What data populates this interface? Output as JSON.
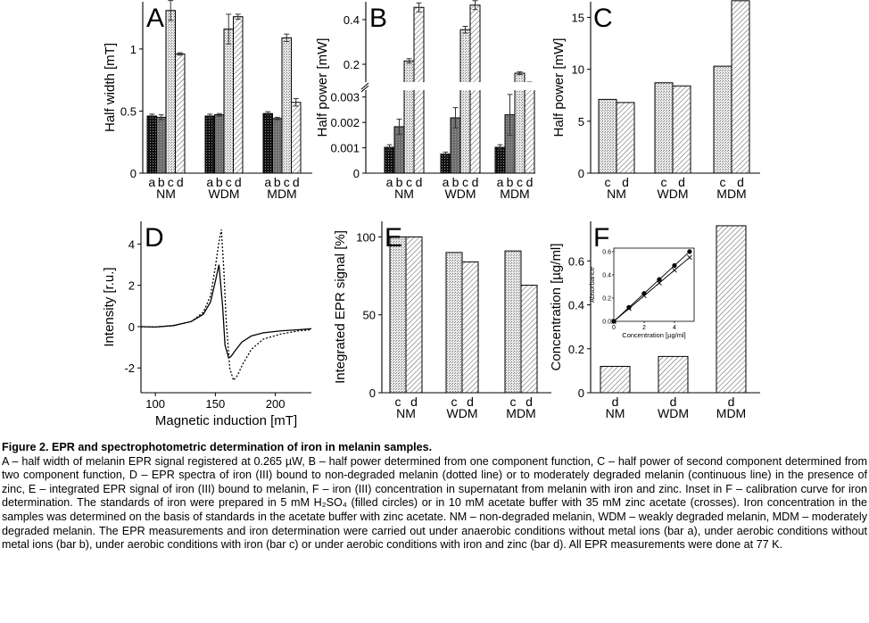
{
  "chart_data": [
    {
      "panel": "A",
      "type": "bar",
      "ylabel": "Half width [mT]",
      "ylim": [
        0,
        1.38
      ],
      "yticks": [
        "0",
        "0.5",
        "1"
      ],
      "ytick_values": [
        0,
        0.5,
        1
      ],
      "groups": [
        "NM",
        "WDM",
        "MDM"
      ],
      "bar_labels": [
        "a",
        "b",
        "c",
        "d"
      ],
      "series": [
        {
          "name": "a",
          "values": [
            0.46,
            0.46,
            0.48
          ],
          "errors": [
            0.015,
            0.015,
            0.015
          ]
        },
        {
          "name": "b",
          "values": [
            0.45,
            0.47,
            0.44
          ],
          "errors": [
            0.02,
            0.01,
            0.01
          ]
        },
        {
          "name": "c",
          "values": [
            1.31,
            1.16,
            1.09
          ],
          "errors": [
            0.08,
            0.12,
            0.03
          ]
        },
        {
          "name": "d",
          "values": [
            0.96,
            1.26,
            0.57
          ],
          "errors": [
            0.01,
            0.02,
            0.03
          ]
        }
      ]
    },
    {
      "panel": "B",
      "type": "bar",
      "ylabel": "Half power [mW]",
      "yticks_lower": [
        "0",
        "0.001",
        "0.002",
        "0.003"
      ],
      "ytick_values_lower": [
        0,
        0.001,
        0.002,
        0.003
      ],
      "yticks_upper": [
        "0.2",
        "0.4"
      ],
      "ytick_values_upper": [
        0.2,
        0.4
      ],
      "axis_break": [
        0.0031,
        0.12
      ],
      "groups": [
        "NM",
        "WDM",
        "MDM"
      ],
      "bar_labels": [
        "a",
        "b",
        "c",
        "d"
      ],
      "series": [
        {
          "name": "a",
          "values": [
            0.00102,
            0.00075,
            0.00102
          ],
          "errors": [
            0.0001,
            8e-05,
            0.0001
          ]
        },
        {
          "name": "b",
          "values": [
            0.00183,
            0.00218,
            0.0023
          ],
          "errors": [
            0.0003,
            0.0004,
            0.0008
          ]
        },
        {
          "name": "c",
          "values": [
            0.215,
            0.355,
            0.16
          ],
          "errors": [
            0.01,
            0.015,
            0.006
          ]
        },
        {
          "name": "d",
          "values": [
            0.455,
            0.465,
            0.117
          ],
          "errors": [
            0.02,
            0.02,
            0.003
          ]
        }
      ]
    },
    {
      "panel": "C",
      "type": "bar",
      "ylabel": "Half power [mW]",
      "ylim": [
        0,
        16.5
      ],
      "yticks": [
        "0",
        "5",
        "10",
        "15"
      ],
      "ytick_values": [
        0,
        5,
        10,
        15
      ],
      "groups": [
        "NM",
        "WDM",
        "MDM"
      ],
      "bar_labels": [
        "c",
        "d"
      ],
      "series": [
        {
          "name": "c",
          "values": [
            7.1,
            8.7,
            10.3
          ]
        },
        {
          "name": "d",
          "values": [
            6.8,
            8.4,
            16.6
          ]
        }
      ]
    },
    {
      "panel": "D",
      "type": "line",
      "xlabel": "Magnetic induction [mT]",
      "ylabel": "Intensity [r.u.]",
      "xlim": [
        88,
        230
      ],
      "ylim": [
        -3.2,
        5.1
      ],
      "xticks": [
        "100",
        "150",
        "200"
      ],
      "xtick_values": [
        100,
        150,
        200
      ],
      "yticks": [
        "-2",
        "0",
        "2",
        "4"
      ],
      "ytick_values": [
        -2,
        0,
        2,
        4
      ],
      "series": [
        {
          "style": "continuous",
          "x": [
            88,
            100,
            115,
            130,
            140,
            146,
            150,
            153,
            156,
            158,
            161,
            163,
            166,
            172,
            180,
            190,
            205,
            220,
            230
          ],
          "y": [
            0.0,
            -0.02,
            0.05,
            0.25,
            0.6,
            1.2,
            2.2,
            3.0,
            1.0,
            -0.9,
            -1.5,
            -1.45,
            -1.2,
            -0.75,
            -0.45,
            -0.3,
            -0.2,
            -0.15,
            -0.1
          ]
        },
        {
          "style": "dotted",
          "x": [
            88,
            100,
            115,
            130,
            140,
            146,
            150,
            153,
            155,
            157,
            159,
            162,
            165,
            168,
            173,
            180,
            190,
            205,
            220,
            230
          ],
          "y": [
            0.0,
            -0.02,
            0.05,
            0.25,
            0.7,
            1.5,
            2.9,
            4.1,
            4.7,
            2.8,
            0.3,
            -2.0,
            -2.6,
            -2.4,
            -1.8,
            -1.1,
            -0.6,
            -0.35,
            -0.2,
            -0.15
          ]
        }
      ]
    },
    {
      "panel": "E",
      "type": "bar",
      "ylabel": "Integrated EPR signal [%]",
      "ylim": [
        0,
        110
      ],
      "yticks": [
        "0",
        "50",
        "100"
      ],
      "ytick_values": [
        0,
        50,
        100
      ],
      "groups": [
        "NM",
        "WDM",
        "MDM"
      ],
      "bar_labels": [
        "c",
        "d"
      ],
      "series": [
        {
          "name": "c",
          "values": [
            100,
            90,
            91
          ]
        },
        {
          "name": "d",
          "values": [
            100,
            84,
            69
          ]
        }
      ]
    },
    {
      "panel": "F",
      "type": "bar",
      "ylabel": "Concentration [µg/ml]",
      "ylim": [
        0,
        0.78
      ],
      "yticks": [
        "0",
        "0.2",
        "0.4",
        "0.6"
      ],
      "ytick_values": [
        0,
        0.2,
        0.4,
        0.6
      ],
      "groups": [
        "NM",
        "WDM",
        "MDM"
      ],
      "bar_labels": [
        "d"
      ],
      "series": [
        {
          "name": "d",
          "values": [
            0.12,
            0.165,
            0.76
          ]
        }
      ],
      "inset": {
        "type": "scatter",
        "xlabel": "Concentration [µg/ml]",
        "ylabel": "Absorbance",
        "xlim": [
          0,
          5.3
        ],
        "ylim": [
          0,
          0.63
        ],
        "xticks": [
          "0",
          "2",
          "4"
        ],
        "xtick_values": [
          0,
          2,
          4
        ],
        "yticks": [
          "0.0",
          "0.2",
          "0.4",
          "0.6"
        ],
        "ytick_values": [
          0,
          0.2,
          0.4,
          0.6
        ],
        "series": [
          {
            "marker": "filled-circle",
            "x": [
              0,
              1,
              2,
              3,
              4,
              5
            ],
            "y": [
              0,
              0.12,
              0.24,
              0.36,
              0.48,
              0.6
            ]
          },
          {
            "marker": "cross",
            "x": [
              0,
              1,
              2,
              3,
              4,
              5
            ],
            "y": [
              0,
              0.11,
              0.22,
              0.33,
              0.44,
              0.55
            ]
          }
        ]
      }
    }
  ],
  "caption": {
    "title": "Figure 2. EPR and spectrophotometric determination of iron in melanin samples.",
    "body": "A – half width of melanin EPR signal registered at 0.265 µW, B – half power determined from one component function, C – half power of second component determined from two component function, D – EPR spectra of iron (III) bound to non-degraded melanin (dotted line) or to moderately degraded melanin (continuous line) in the presence of zinc, E – integrated EPR signal of iron (III) bound to melanin, F – iron (III) concentration in supernatant from melanin with iron and zinc. Inset in F – calibration curve for iron determination. The standards of iron were prepared in 5 mM H₂SO₄ (filled circles) or in 10 mM acetate buffer with 35 mM zinc acetate (crosses). Iron concentration in the samples was determined on the basis of standards in the acetate buffer with zinc acetate. NM – non-degraded melanin, WDM – weakly degraded melanin, MDM – moderately degraded melanin. The EPR measurements and iron determination were carried out under anaerobic conditions without metal ions (bar a), under aerobic conditions without metal ions (bar b), under aerobic conditions with iron (bar c) or under aerobic conditions with iron and zinc (bar d). All EPR measurements were done at 77 K."
  }
}
